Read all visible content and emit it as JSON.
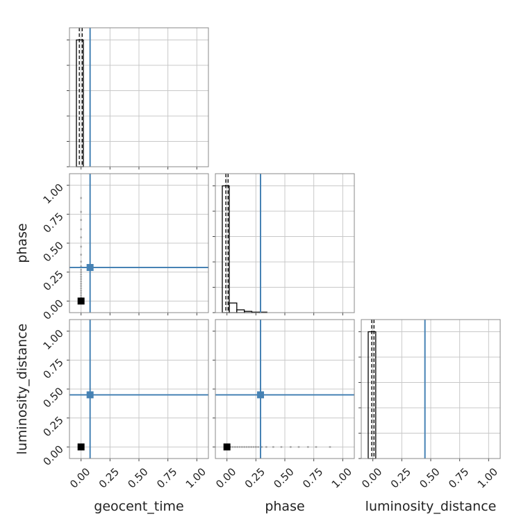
{
  "chart_data": {
    "type": "corner",
    "parameters": [
      "geocent_time",
      "phase",
      "luminosity_distance"
    ],
    "xlim": [
      -0.1,
      1.1
    ],
    "ticks": [
      {
        "value": 0,
        "label": "0.00"
      },
      {
        "value": 0.25,
        "label": "0.25"
      },
      {
        "value": 0.5,
        "label": "0.50"
      },
      {
        "value": 0.75,
        "label": "0.75"
      },
      {
        "value": 1,
        "label": "1.00"
      }
    ],
    "truths": [
      0.078,
      0.29,
      0.45
    ],
    "truth_color": "#4682b4",
    "hist_ylim": [
      0,
      5.48
    ],
    "hist_yticks": [
      0,
      1,
      2,
      3,
      4,
      5
    ],
    "histograms": [
      {
        "bins": [
          -0.04,
          0.02
        ],
        "counts": [
          5
        ],
        "quantiles": [
          -0.015,
          0.01
        ]
      },
      {
        "bins": [
          -0.04,
          0.02,
          0.085,
          0.15,
          0.215,
          0.28,
          0.345
        ],
        "counts": [
          5,
          0.38,
          0.11,
          0.05,
          0.02,
          0.02
        ],
        "quantiles": [
          -0.01,
          0.01
        ]
      },
      {
        "bins": [
          -0.04,
          0.025
        ],
        "counts": [
          5
        ],
        "quantiles": [
          -0.01,
          0.01
        ]
      }
    ],
    "peak": [
      0,
      0,
      0
    ],
    "samples": {
      "geocent_time": [
        0,
        0,
        0,
        0,
        0,
        0,
        0,
        0,
        0,
        0,
        0,
        0,
        0,
        0,
        0,
        0,
        0,
        0,
        0,
        0,
        0,
        0
      ],
      "phase": [
        0.03,
        0.05,
        0.07,
        0.09,
        0.11,
        0.13,
        0.15,
        0.17,
        0.19,
        0.21,
        0.23,
        0.25,
        0.27,
        0.3,
        0.34,
        0.4,
        0.47,
        0.55,
        0.62,
        0.7,
        0.77,
        0.89
      ],
      "luminosity_distance": [
        0,
        0,
        0,
        0,
        0,
        0,
        0,
        0,
        0,
        0,
        0,
        0,
        0,
        0,
        0,
        0,
        0,
        0,
        0,
        0,
        0,
        0
      ]
    },
    "grid": true
  }
}
